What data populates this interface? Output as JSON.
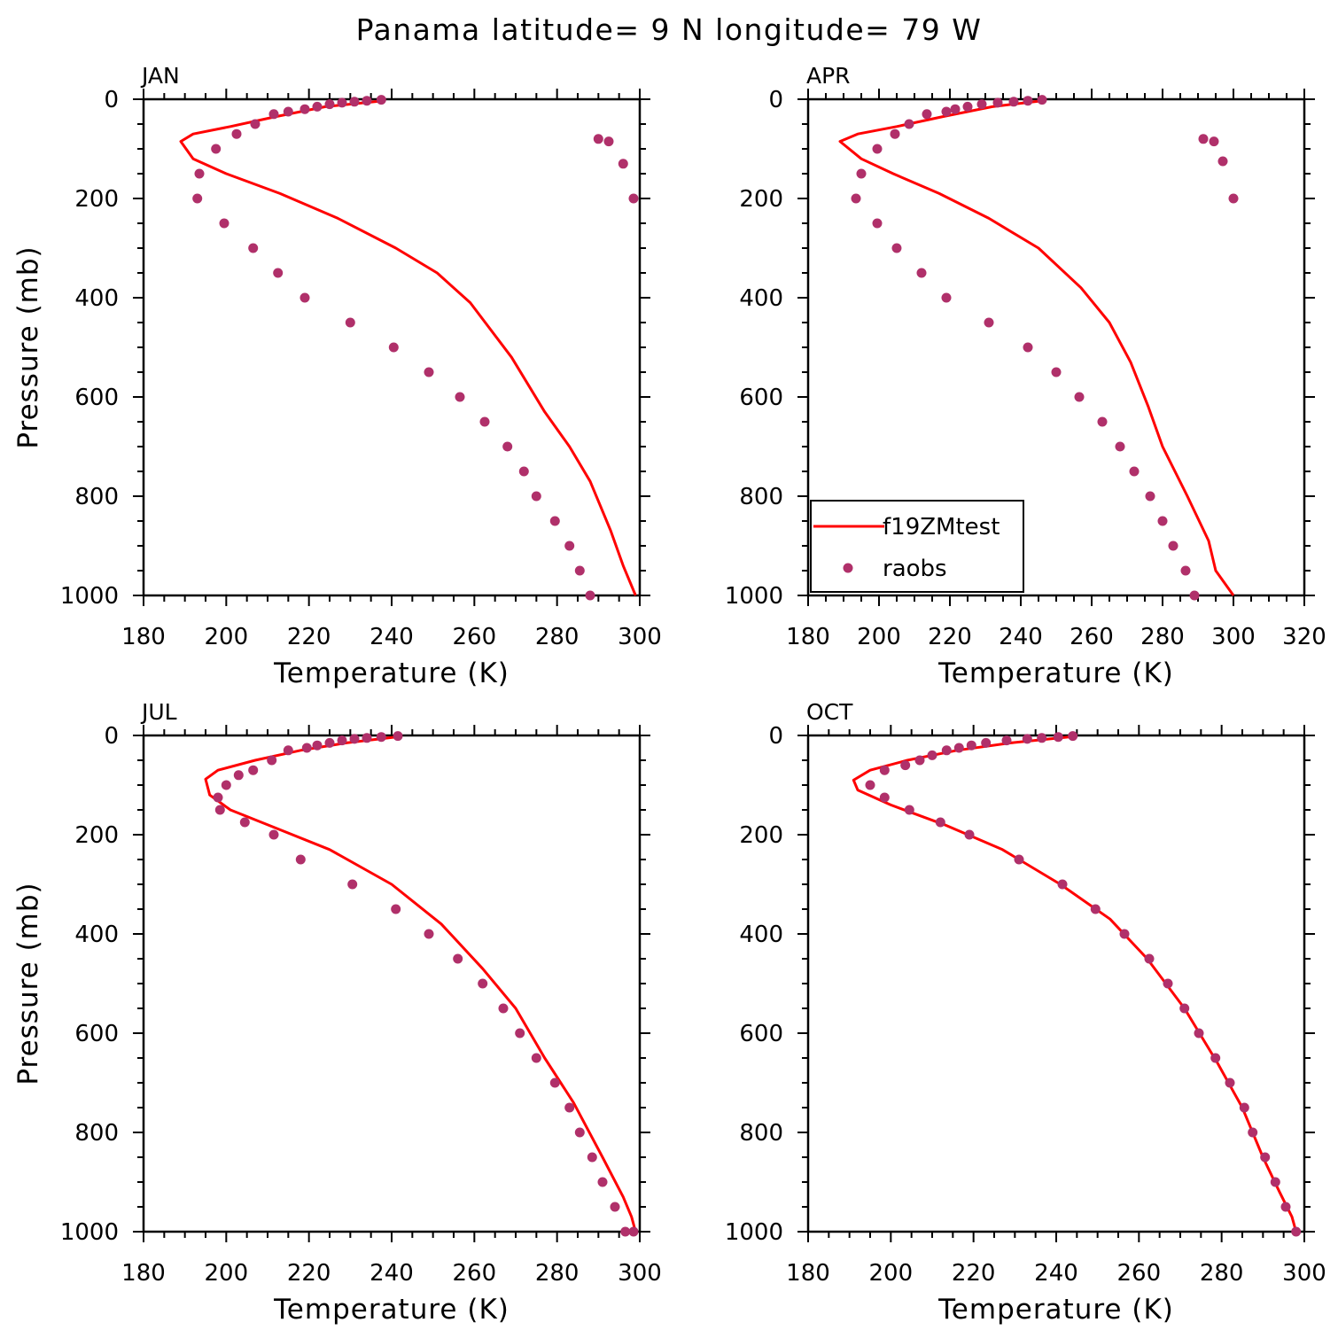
{
  "title": "Panama  latitude= 9 N longitude= 79 W",
  "colors": {
    "model": "#ff0000",
    "obs": "#b0306a",
    "axes": "#000000"
  },
  "chart_data": [
    {
      "type": "line",
      "panel": "JAN",
      "xlabel": "Temperature (K)",
      "ylabel": "Pressure (mb)",
      "xlim": [
        180,
        300
      ],
      "xticks": [
        180,
        200,
        220,
        240,
        260,
        280,
        300
      ],
      "ylim": [
        1000,
        0
      ],
      "yticks": [
        0,
        200,
        400,
        600,
        800,
        1000
      ],
      "series": [
        {
          "name": "f19ZMtest",
          "kind": "line",
          "x": [
            238,
            224,
            212,
            201,
            192,
            189,
            192,
            200,
            213,
            227,
            241,
            251,
            259,
            269,
            277,
            283,
            288,
            293,
            296,
            299
          ],
          "y": [
            3,
            15,
            35,
            55,
            70,
            85,
            120,
            150,
            190,
            240,
            300,
            350,
            410,
            520,
            630,
            700,
            770,
            870,
            940,
            1000
          ]
        },
        {
          "name": "raobs",
          "kind": "scatter",
          "x": [
            237.5,
            234,
            231,
            228,
            225,
            222,
            219,
            215,
            211.5,
            207,
            202.5,
            197.5,
            193.5,
            193,
            199.5,
            206.5,
            212.5,
            219,
            230,
            240.5,
            249,
            256.5,
            262.5,
            268,
            272,
            275,
            279.5,
            283,
            285.5,
            288,
            290,
            292.5,
            296,
            298.5
          ],
          "y": [
            1,
            3,
            5,
            7,
            10,
            15,
            20,
            25,
            30,
            50,
            70,
            100,
            150,
            200,
            250,
            300,
            350,
            400,
            450,
            500,
            550,
            600,
            650,
            700,
            750,
            800,
            850,
            900,
            950,
            1000,
            80,
            85,
            130,
            200
          ]
        }
      ]
    },
    {
      "type": "line",
      "panel": "APR",
      "xlabel": "Temperature (K)",
      "ylabel": "",
      "xlim": [
        180,
        320
      ],
      "xticks": [
        180,
        200,
        220,
        240,
        260,
        280,
        300,
        320
      ],
      "ylim": [
        1000,
        0
      ],
      "yticks": [
        0,
        200,
        400,
        600,
        800,
        1000
      ],
      "legend": {
        "position": "bottom-left",
        "entries": [
          "f19ZMtest",
          "raobs"
        ]
      },
      "series": [
        {
          "name": "f19ZMtest",
          "kind": "line",
          "x": [
            246,
            232,
            218,
            205,
            194,
            189,
            195,
            204,
            217,
            231,
            245,
            257,
            265,
            271,
            276,
            280,
            287,
            293,
            295,
            300
          ],
          "y": [
            3,
            15,
            35,
            55,
            70,
            85,
            120,
            150,
            190,
            240,
            300,
            380,
            450,
            530,
            620,
            700,
            800,
            890,
            950,
            1000
          ]
        },
        {
          "name": "raobs",
          "kind": "scatter",
          "x": [
            246,
            242,
            238,
            233.5,
            229,
            225,
            221.5,
            219,
            213.5,
            208.5,
            204.5,
            199.5,
            195,
            193.5,
            199.5,
            205,
            212,
            219,
            231,
            242,
            250,
            256.5,
            263,
            268,
            272,
            276.5,
            280,
            283,
            286.5,
            289,
            291.5,
            294.5,
            297,
            300
          ],
          "y": [
            1,
            3,
            5,
            7,
            10,
            15,
            20,
            25,
            30,
            50,
            70,
            100,
            150,
            200,
            250,
            300,
            350,
            400,
            450,
            500,
            550,
            600,
            650,
            700,
            750,
            800,
            850,
            900,
            950,
            1000,
            80,
            85,
            125,
            200
          ]
        }
      ]
    },
    {
      "type": "line",
      "panel": "JUL",
      "xlabel": "Temperature (K)",
      "ylabel": "Pressure (mb)",
      "xlim": [
        180,
        300
      ],
      "xticks": [
        180,
        200,
        220,
        240,
        260,
        280,
        300
      ],
      "ylim": [
        1000,
        0
      ],
      "yticks": [
        0,
        200,
        400,
        600,
        800,
        1000
      ],
      "series": [
        {
          "name": "f19ZMtest",
          "kind": "line",
          "x": [
            241,
            229,
            218,
            207,
            198,
            195,
            196,
            201,
            213,
            225,
            240,
            252,
            262,
            270,
            277,
            284,
            291,
            296,
            298,
            299
          ],
          "y": [
            3,
            15,
            30,
            50,
            70,
            88,
            120,
            150,
            190,
            230,
            300,
            380,
            470,
            550,
            650,
            740,
            850,
            930,
            970,
            1000
          ]
        },
        {
          "name": "raobs",
          "kind": "scatter",
          "x": [
            241.5,
            237.5,
            234,
            231,
            228,
            225,
            222,
            219.5,
            215,
            211,
            206.5,
            203,
            200,
            198,
            198.5,
            204.5,
            211.5,
            218,
            230.5,
            241,
            249,
            256,
            262,
            267,
            271,
            275,
            279.5,
            283,
            285.5,
            288.5,
            291,
            294,
            296.5,
            298.5
          ],
          "y": [
            1,
            3,
            5,
            7,
            10,
            15,
            20,
            25,
            30,
            50,
            70,
            80,
            100,
            125,
            150,
            175,
            200,
            250,
            300,
            350,
            400,
            450,
            500,
            550,
            600,
            650,
            700,
            750,
            800,
            850,
            900,
            950,
            1000,
            1000
          ]
        }
      ]
    },
    {
      "type": "line",
      "panel": "OCT",
      "xlabel": "Temperature (K)",
      "ylabel": "",
      "xlim": [
        180,
        300
      ],
      "xticks": [
        180,
        200,
        220,
        240,
        260,
        280,
        300
      ],
      "ylim": [
        1000,
        0
      ],
      "yticks": [
        0,
        200,
        400,
        600,
        800,
        1000
      ],
      "series": [
        {
          "name": "f19ZMtest",
          "kind": "line",
          "x": [
            243,
            229,
            216,
            204,
            195,
            191,
            192,
            200,
            213,
            227,
            241,
            253,
            262,
            271,
            279,
            285,
            290,
            294,
            297,
            298
          ],
          "y": [
            3,
            15,
            30,
            50,
            70,
            90,
            110,
            140,
            180,
            230,
            300,
            370,
            450,
            550,
            660,
            750,
            850,
            920,
            970,
            1000
          ]
        },
        {
          "name": "raobs",
          "kind": "scatter",
          "x": [
            244,
            240.5,
            236.5,
            233,
            228,
            223,
            219.5,
            216.5,
            213.5,
            210,
            207,
            203.5,
            198.5,
            195,
            198.5,
            204.5,
            212,
            219,
            231,
            241.5,
            249.5,
            256.5,
            262.5,
            267,
            271,
            274.5,
            278.5,
            282,
            285.5,
            287.5,
            290.5,
            293,
            295.5,
            298
          ],
          "y": [
            1,
            3,
            5,
            7,
            10,
            15,
            20,
            25,
            30,
            40,
            50,
            60,
            70,
            100,
            125,
            150,
            175,
            200,
            250,
            300,
            350,
            400,
            450,
            500,
            550,
            600,
            650,
            700,
            750,
            800,
            850,
            900,
            950,
            1000
          ]
        }
      ]
    }
  ]
}
